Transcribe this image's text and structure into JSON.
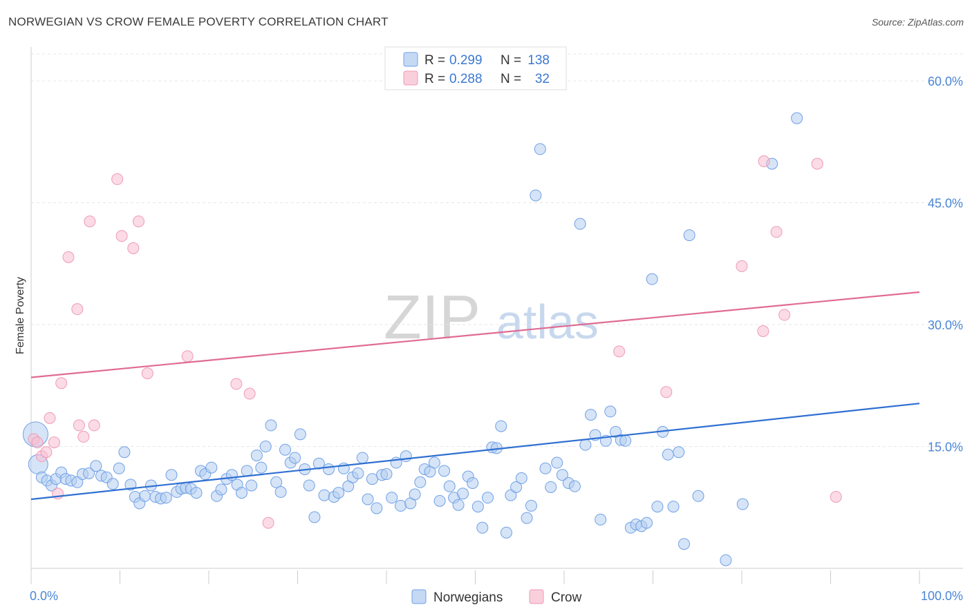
{
  "title": "NORWEGIAN VS CROW FEMALE POVERTY CORRELATION CHART",
  "source": "Source: ZipAtlas.com",
  "watermark": {
    "zip": "ZIP",
    "atlas": "atlas"
  },
  "legend_top": [
    {
      "r_label": "R = ",
      "r_value": "0.299",
      "n_label": "N = ",
      "n_value": "138",
      "color": "#6fa0e6"
    },
    {
      "r_label": "R = ",
      "r_value": "0.288",
      "n_label": "N = ",
      "n_value": "32",
      "color": "#ef9ab5"
    }
  ],
  "chart_data": {
    "type": "scatter",
    "title": "NORWEGIAN VS CROW FEMALE POVERTY CORRELATION CHART",
    "xlabel": "",
    "ylabel": "Female Poverty",
    "xlim": [
      0,
      100
    ],
    "ylim": [
      0,
      64
    ],
    "x_tick_labels": [
      "0.0%",
      "100.0%"
    ],
    "y_ticks": [
      15,
      30,
      45,
      60
    ],
    "y_tick_labels": [
      "15.0%",
      "30.0%",
      "45.0%",
      "60.0%"
    ],
    "grid": true,
    "legend_position": "bottom-center",
    "series": [
      {
        "name": "Norwegians",
        "color": "#6fa0e6",
        "trend": {
          "x": [
            0,
            100
          ],
          "y": [
            8.5,
            20.3
          ]
        },
        "points": [
          [
            0.5,
            16.5
          ],
          [
            0.8,
            12.8
          ],
          [
            1.2,
            11.2
          ],
          [
            1.8,
            10.8
          ],
          [
            2.3,
            10.2
          ],
          [
            2.8,
            11.0
          ],
          [
            3.4,
            11.8
          ],
          [
            3.9,
            11.0
          ],
          [
            4.5,
            10.8
          ],
          [
            5.2,
            10.6
          ],
          [
            5.8,
            11.6
          ],
          [
            6.5,
            11.7
          ],
          [
            7.3,
            12.6
          ],
          [
            7.9,
            11.4
          ],
          [
            8.5,
            11.2
          ],
          [
            9.2,
            10.4
          ],
          [
            9.9,
            12.3
          ],
          [
            10.5,
            14.3
          ],
          [
            11.2,
            10.3
          ],
          [
            11.7,
            8.8
          ],
          [
            12.2,
            8.0
          ],
          [
            12.8,
            8.9
          ],
          [
            13.5,
            10.2
          ],
          [
            14.0,
            8.8
          ],
          [
            14.6,
            8.6
          ],
          [
            15.2,
            8.7
          ],
          [
            15.8,
            11.5
          ],
          [
            16.4,
            9.4
          ],
          [
            16.9,
            9.8
          ],
          [
            17.4,
            9.9
          ],
          [
            18.0,
            9.8
          ],
          [
            18.6,
            9.3
          ],
          [
            19.1,
            12.0
          ],
          [
            19.6,
            11.6
          ],
          [
            20.3,
            12.4
          ],
          [
            20.9,
            8.9
          ],
          [
            21.4,
            9.7
          ],
          [
            22.0,
            11.0
          ],
          [
            22.6,
            11.5
          ],
          [
            23.2,
            10.3
          ],
          [
            23.7,
            9.3
          ],
          [
            24.3,
            12.0
          ],
          [
            24.8,
            10.2
          ],
          [
            25.4,
            13.9
          ],
          [
            25.9,
            12.4
          ],
          [
            26.4,
            15.0
          ],
          [
            27.0,
            17.6
          ],
          [
            27.6,
            10.6
          ],
          [
            28.1,
            9.4
          ],
          [
            28.6,
            14.6
          ],
          [
            29.2,
            13.0
          ],
          [
            29.7,
            13.6
          ],
          [
            30.3,
            16.5
          ],
          [
            30.8,
            12.2
          ],
          [
            31.3,
            10.2
          ],
          [
            31.9,
            6.3
          ],
          [
            32.4,
            12.9
          ],
          [
            33.0,
            9.0
          ],
          [
            33.5,
            12.2
          ],
          [
            34.1,
            8.8
          ],
          [
            34.6,
            9.3
          ],
          [
            35.2,
            12.3
          ],
          [
            35.7,
            10.1
          ],
          [
            36.2,
            11.2
          ],
          [
            36.8,
            11.7
          ],
          [
            37.3,
            13.6
          ],
          [
            37.9,
            8.5
          ],
          [
            38.4,
            11.0
          ],
          [
            38.9,
            7.4
          ],
          [
            39.5,
            11.5
          ],
          [
            40.0,
            11.6
          ],
          [
            40.6,
            8.7
          ],
          [
            41.1,
            13.0
          ],
          [
            41.6,
            7.7
          ],
          [
            42.2,
            13.8
          ],
          [
            42.7,
            8.0
          ],
          [
            43.2,
            9.1
          ],
          [
            43.8,
            10.6
          ],
          [
            44.3,
            12.2
          ],
          [
            44.9,
            11.9
          ],
          [
            45.4,
            13.0
          ],
          [
            46.0,
            8.3
          ],
          [
            46.5,
            12.0
          ],
          [
            47.1,
            10.1
          ],
          [
            47.6,
            8.7
          ],
          [
            48.1,
            7.8
          ],
          [
            48.6,
            9.2
          ],
          [
            49.2,
            11.3
          ],
          [
            49.7,
            10.5
          ],
          [
            50.3,
            7.6
          ],
          [
            50.8,
            5.0
          ],
          [
            51.4,
            8.7
          ],
          [
            51.9,
            14.9
          ],
          [
            52.4,
            14.8
          ],
          [
            52.9,
            17.5
          ],
          [
            53.5,
            4.4
          ],
          [
            54.0,
            9.0
          ],
          [
            54.6,
            10.0
          ],
          [
            55.2,
            11.1
          ],
          [
            55.8,
            6.2
          ],
          [
            56.3,
            7.7
          ],
          [
            56.8,
            45.9
          ],
          [
            57.3,
            51.6
          ],
          [
            57.9,
            12.3
          ],
          [
            58.5,
            10.0
          ],
          [
            59.2,
            13.0
          ],
          [
            59.8,
            11.5
          ],
          [
            60.5,
            10.5
          ],
          [
            61.2,
            10.1
          ],
          [
            61.8,
            42.4
          ],
          [
            62.4,
            15.2
          ],
          [
            63.0,
            18.9
          ],
          [
            63.5,
            16.4
          ],
          [
            64.1,
            6.0
          ],
          [
            64.7,
            15.7
          ],
          [
            65.2,
            19.3
          ],
          [
            65.8,
            16.8
          ],
          [
            66.4,
            15.8
          ],
          [
            66.9,
            15.7
          ],
          [
            67.5,
            5.0
          ],
          [
            68.1,
            5.4
          ],
          [
            68.7,
            5.2
          ],
          [
            69.3,
            5.6
          ],
          [
            69.9,
            35.6
          ],
          [
            70.5,
            7.6
          ],
          [
            71.1,
            16.8
          ],
          [
            71.7,
            14.0
          ],
          [
            72.3,
            7.6
          ],
          [
            72.9,
            14.3
          ],
          [
            73.5,
            3.0
          ],
          [
            74.1,
            41.0
          ],
          [
            75.1,
            8.9
          ],
          [
            78.2,
            1.0
          ],
          [
            80.1,
            7.9
          ],
          [
            83.4,
            49.8
          ],
          [
            86.2,
            55.4
          ]
        ]
      },
      {
        "name": "Crow",
        "color": "#ef9ab5",
        "trend": {
          "x": [
            0,
            100
          ],
          "y": [
            23.5,
            34.0
          ]
        },
        "points": [
          [
            0.3,
            15.9
          ],
          [
            0.7,
            15.5
          ],
          [
            1.2,
            13.8
          ],
          [
            1.7,
            14.3
          ],
          [
            2.1,
            18.5
          ],
          [
            2.6,
            15.5
          ],
          [
            3.0,
            9.2
          ],
          [
            3.4,
            22.8
          ],
          [
            4.2,
            38.3
          ],
          [
            5.2,
            31.9
          ],
          [
            5.4,
            17.6
          ],
          [
            5.9,
            16.2
          ],
          [
            6.6,
            42.7
          ],
          [
            7.1,
            17.6
          ],
          [
            9.7,
            47.9
          ],
          [
            10.2,
            40.9
          ],
          [
            11.5,
            39.4
          ],
          [
            12.1,
            42.7
          ],
          [
            13.1,
            24.0
          ],
          [
            17.6,
            26.1
          ],
          [
            23.1,
            22.7
          ],
          [
            24.6,
            21.5
          ],
          [
            26.7,
            5.6
          ],
          [
            66.2,
            26.7
          ],
          [
            71.5,
            21.7
          ],
          [
            80.0,
            37.2
          ],
          [
            82.4,
            29.2
          ],
          [
            82.5,
            50.1
          ],
          [
            83.9,
            41.4
          ],
          [
            84.8,
            31.2
          ],
          [
            88.5,
            49.8
          ],
          [
            90.6,
            8.8
          ]
        ]
      }
    ]
  }
}
